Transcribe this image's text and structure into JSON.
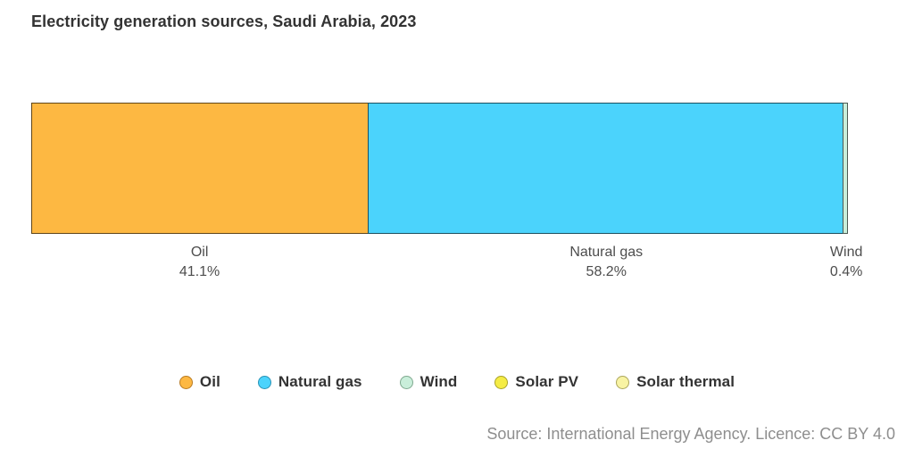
{
  "title": "Electricity generation sources, Saudi Arabia, 2023",
  "source_note": "Source: International Energy Agency. Licence: CC BY 4.0",
  "colors": {
    "background": "#ffffff",
    "title_text": "#333333",
    "label_text": "#4d4d4d",
    "legend_text": "#333333",
    "source_text": "#8e8e8e",
    "segment_border": "rgba(0,0,0,0.62)"
  },
  "chart_data": {
    "type": "bar",
    "variant": "stacked-horizontal-100pct",
    "title": "Electricity generation sources, Saudi Arabia, 2023",
    "xlim": [
      0,
      100
    ],
    "grid": false,
    "legend_position": "bottom-center",
    "segments": [
      {
        "name": "Oil",
        "value_pct": 41.1,
        "label": "Oil",
        "value_label": "41.1%",
        "color": "#FDB842"
      },
      {
        "name": "Natural gas",
        "value_pct": 58.2,
        "label": "Natural gas",
        "value_label": "58.2%",
        "color": "#4BD3FC"
      },
      {
        "name": "Wind",
        "value_pct": 0.4,
        "label": "Wind",
        "value_label": "0.4%",
        "color": "#C9EEDA"
      }
    ],
    "legend": [
      {
        "label": "Oil",
        "fill": "#FDB842",
        "border": "#B97B22"
      },
      {
        "label": "Natural gas",
        "fill": "#4BD3FC",
        "border": "#2A93B5"
      },
      {
        "label": "Wind",
        "fill": "#C9EEDA",
        "border": "#7FA98F"
      },
      {
        "label": "Solar PV",
        "fill": "#F5EC45",
        "border": "#A9A32A"
      },
      {
        "label": "Solar thermal",
        "fill": "#F8F3A3",
        "border": "#ABA65C"
      }
    ]
  }
}
